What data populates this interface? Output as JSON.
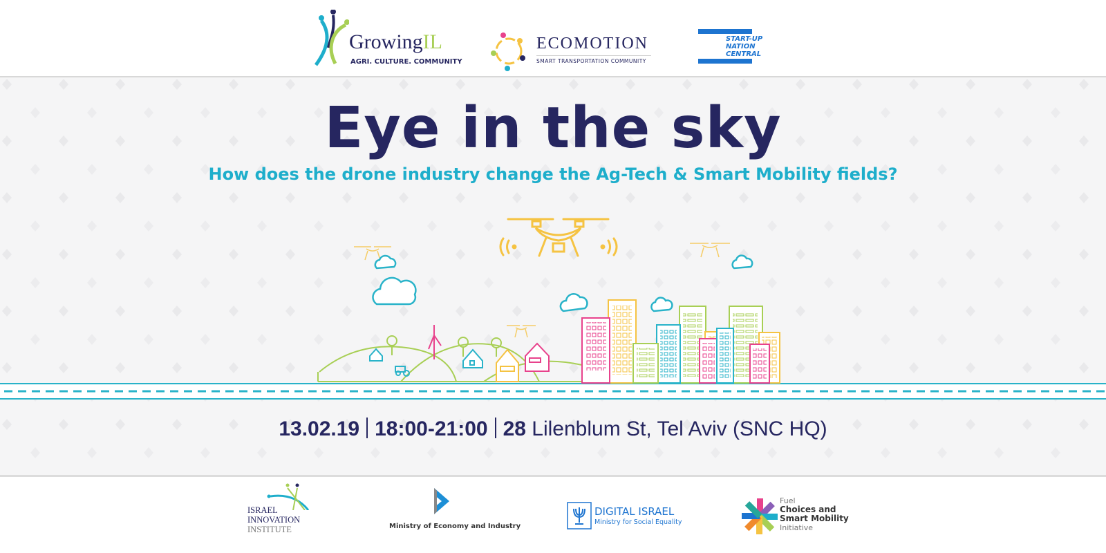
{
  "top_logos": {
    "growingil": {
      "name": "GrowingIL",
      "name_main": "Growing",
      "name_accent": "IL",
      "tagline": "AGRI. CULTURE. COMMUNITY"
    },
    "ecomotion": {
      "name": "ECOMOTION",
      "tagline": "SMART TRANSPORTATION COMMUNITY"
    },
    "snc": {
      "line1": "START-UP",
      "line2": "NATION",
      "line3": "CENTRAL"
    }
  },
  "headline": {
    "title": "Eye in the sky",
    "subtitle": "How does the drone industry change the Ag-Tech & Smart Mobility fields?"
  },
  "event": {
    "date": "13.02.19",
    "time": "18:00-21:00",
    "location_number": "28",
    "location": "Lilenblum St, Tel Aviv (SNC HQ)"
  },
  "bottom_logos": {
    "iii": {
      "line1": "ISRAEL",
      "line2": "INNOVATION",
      "line3": "INSTITUTE"
    },
    "ministry": {
      "name": "Ministry of Economy and Industry"
    },
    "digital": {
      "name": "DIGITAL ISRAEL",
      "sub": "Ministry for Social Equality"
    },
    "fuel": {
      "line1": "Fuel",
      "line2": "Choices and",
      "line3": "Smart Mobility",
      "line4": "Initiative"
    }
  },
  "colors": {
    "navy": "#262660",
    "teal": "#1eaecb",
    "drone_yellow": "#f5c342",
    "green": "#a8cf55",
    "pink": "#e8428c",
    "snc_blue": "#1d74d0"
  }
}
